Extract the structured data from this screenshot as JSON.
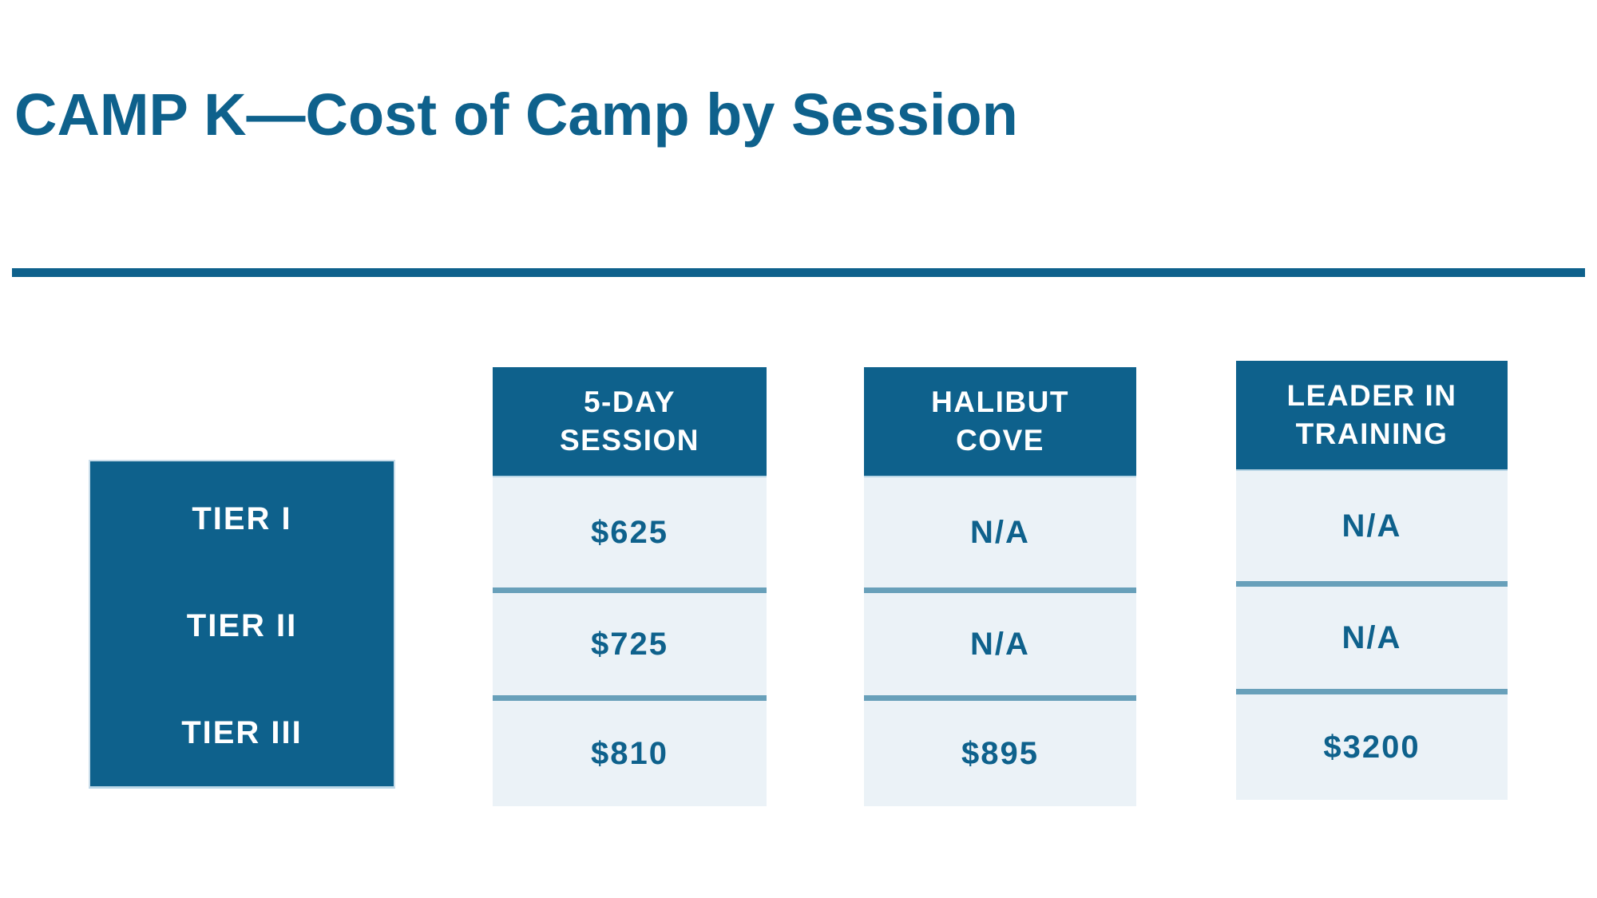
{
  "slide": {
    "title": "CAMP K—Cost of Camp by Session"
  },
  "colors": {
    "brand_blue": "#0E618C",
    "cell_background": "#EBF2F7",
    "row_divider": "#68A0BA",
    "header_underline": "#B8D5E5",
    "text_on_blue": "#FFFFFF"
  },
  "tiers": {
    "items": [
      "TIER I",
      "TIER II",
      "TIER III"
    ]
  },
  "columns": [
    {
      "label": "5-DAY SESSION",
      "lines": [
        "5-DAY",
        "SESSION"
      ],
      "values": [
        "$625",
        "$725",
        "$810"
      ]
    },
    {
      "label": "HALIBUT COVE",
      "lines": [
        "HALIBUT",
        "COVE"
      ],
      "values": [
        "N/A",
        "N/A",
        "$895"
      ]
    },
    {
      "label": "LEADER IN TRAINING",
      "lines": [
        "LEADER IN",
        "TRAINING"
      ],
      "values": [
        "N/A",
        "N/A",
        "$3200"
      ]
    }
  ],
  "chart_data": {
    "type": "table",
    "title": "CAMP K—Cost of Camp by Session",
    "row_headers": [
      "TIER I",
      "TIER II",
      "TIER III"
    ],
    "column_headers": [
      "5-DAY SESSION",
      "HALIBUT COVE",
      "LEADER IN TRAINING"
    ],
    "rows": [
      [
        "$625",
        "N/A",
        "N/A"
      ],
      [
        "$725",
        "N/A",
        "N/A"
      ],
      [
        "$810",
        "$895",
        "$3200"
      ]
    ]
  }
}
